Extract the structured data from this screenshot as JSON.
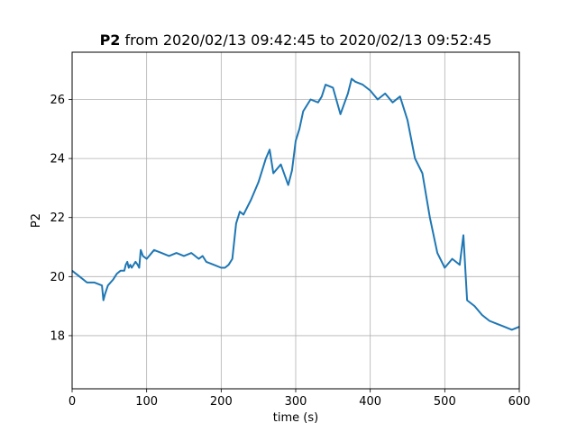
{
  "chart_data": {
    "type": "line",
    "title_bold": "P2",
    "title_rest": " from 2020/02/13 09:42:45 to 2020/02/13 09:52:45",
    "xlabel": "time (s)",
    "ylabel": "P2",
    "xlim": [
      0,
      600
    ],
    "ylim": [
      16.2,
      27.6
    ],
    "xticks": [
      0,
      100,
      200,
      300,
      400,
      500,
      600
    ],
    "yticks": [
      18,
      20,
      22,
      24,
      26
    ],
    "grid": true,
    "series": [
      {
        "color": "#1f77b4",
        "x": [
          0,
          10,
          20,
          30,
          40,
          42,
          44,
          48,
          55,
          60,
          65,
          70,
          72,
          74,
          76,
          78,
          80,
          85,
          88,
          90,
          92,
          95,
          100,
          110,
          120,
          130,
          140,
          150,
          160,
          170,
          175,
          180,
          190,
          200,
          205,
          210,
          215,
          220,
          225,
          230,
          240,
          250,
          260,
          265,
          270,
          280,
          290,
          295,
          300,
          305,
          310,
          320,
          330,
          335,
          340,
          350,
          360,
          370,
          375,
          380,
          390,
          400,
          410,
          420,
          430,
          440,
          450,
          460,
          470,
          480,
          490,
          500,
          510,
          520,
          525,
          530,
          540,
          550,
          560,
          570,
          580,
          590,
          600
        ],
        "y": [
          20.2,
          20.0,
          19.8,
          19.8,
          19.7,
          19.2,
          19.4,
          19.7,
          19.9,
          20.1,
          20.2,
          20.2,
          20.4,
          20.5,
          20.3,
          20.4,
          20.3,
          20.5,
          20.4,
          20.3,
          20.9,
          20.7,
          20.6,
          20.9,
          20.8,
          20.7,
          20.8,
          20.7,
          20.8,
          20.6,
          20.7,
          20.5,
          20.4,
          20.3,
          20.3,
          20.4,
          20.6,
          21.8,
          22.2,
          22.1,
          22.6,
          23.2,
          24.0,
          24.3,
          23.5,
          23.8,
          23.1,
          23.6,
          24.6,
          25.0,
          25.6,
          26.0,
          25.9,
          26.1,
          26.5,
          26.4,
          25.5,
          26.2,
          26.7,
          26.6,
          26.5,
          26.3,
          26.0,
          26.2,
          25.9,
          26.1,
          25.3,
          24.0,
          23.5,
          22.0,
          20.8,
          20.3,
          20.6,
          20.4,
          21.4,
          19.2,
          19.0,
          18.7,
          18.5,
          18.4,
          18.3,
          18.2,
          18.3
        ]
      }
    ]
  }
}
